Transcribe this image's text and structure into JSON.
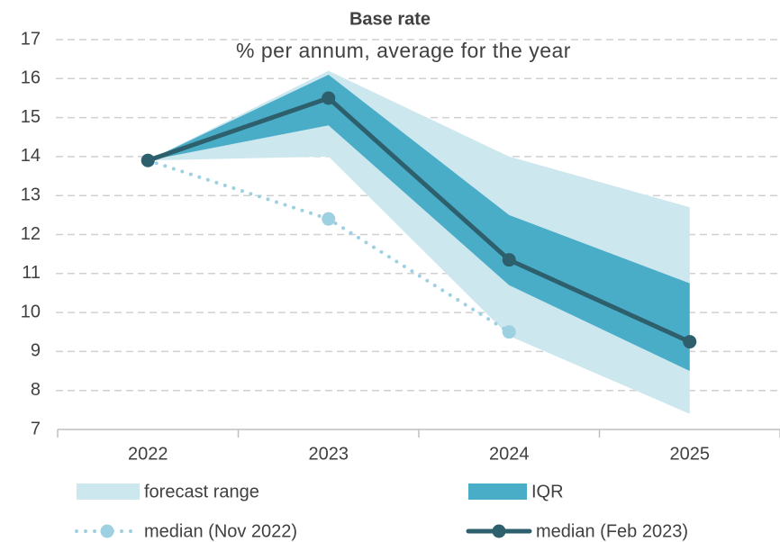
{
  "chart_data": {
    "type": "fan",
    "title": "Base rate",
    "subtitle": "% per annum, average for the year",
    "categories": [
      "2022",
      "2023",
      "2024",
      "2025"
    ],
    "ylim": [
      7,
      17
    ],
    "yticks": [
      7,
      8,
      9,
      10,
      11,
      12,
      13,
      14,
      15,
      16,
      17
    ],
    "grid": true,
    "bands": [
      {
        "name": "forecast range",
        "color": "#cde7ef",
        "low": [
          13.9,
          14.0,
          9.4,
          7.4
        ],
        "high": [
          13.9,
          16.2,
          14.0,
          12.7
        ]
      },
      {
        "name": "IQR",
        "color": "#4aadc8",
        "low": [
          13.9,
          14.8,
          10.7,
          8.5
        ],
        "high": [
          13.9,
          16.1,
          12.5,
          10.75
        ]
      }
    ],
    "series": [
      {
        "name": "median (Nov 2022)",
        "color": "#9dd0e0",
        "style": "dotted",
        "values": [
          13.9,
          12.4,
          9.5,
          null
        ]
      },
      {
        "name": "median (Feb 2023)",
        "color": "#2d5f6c",
        "style": "solid",
        "values": [
          13.9,
          15.5,
          11.35,
          9.25
        ]
      }
    ]
  }
}
